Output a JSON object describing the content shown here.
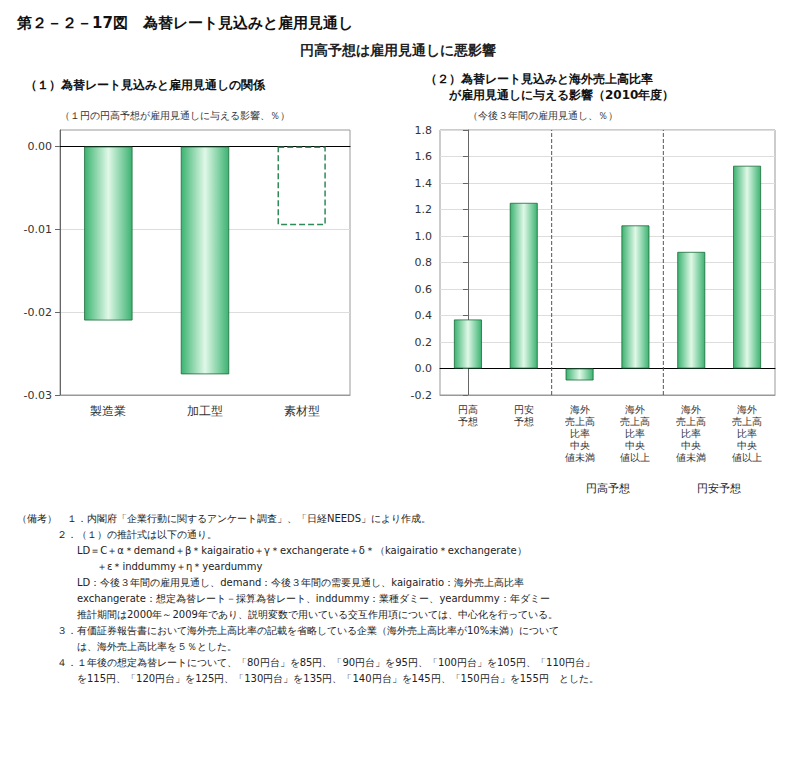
{
  "title": "第２－２－17図　為替レート見込みと雇用見通し",
  "subtitle": "円高予想は雇用見通しに悪影響",
  "notes": [
    "（備考）　１．内閣府「企業行動に関するアンケート調査」、「日経NEEDS」により作成。",
    "　　　　２．（１）の推計式は以下の通り。",
    "　　　　　　LD＝C＋α＊demand＋β＊kaigairatio＋γ＊exchangerate＋δ＊（kaigairatio＊exchangerate）",
    "　　　　　　　　＋ε＊inddummy＋η＊yeardummy",
    "　　　　　　LD：今後３年間の雇用見通し、demand：今後３年間の需要見通し、kaigairatio：海外売上高比率",
    "　　　　　　exchangerate：想定為替レート－採算為替レート、inddummy：業種ダミー、yeardummy：年ダミー",
    "　　　　　　推計期間は2000年～2009年であり、説明変数で用いている交互作用項については、中心化を行っている。",
    "　　　　３．有価証券報告書において海外売上高比率の記載を省略している企業（海外売上高比率が10%未満）について",
    "　　　　　　は、海外売上高比率を５％とした。",
    "　　　　４．１年後の想定為替レートについて、「80円台」を85円、「90円台」を95円、「100円台」を105円、「110円台」",
    "　　　　　　を115円、「120円台」を125円、「130円台」を135円、「140円台」を145円、「150円台」を155円　とした。"
  ],
  "chart_data": [
    {
      "type": "bar",
      "title": "（１）為替レート見込みと雇用見通しの関係",
      "y_label": "（１円の円高予想が雇用見通しに与える影響、％）",
      "categories": [
        "製造業",
        "加工型",
        "素材型"
      ],
      "series": [
        {
          "values": [
            -0.021,
            -0.0275,
            null
          ],
          "color": "#3cb371"
        },
        {
          "values": [
            null,
            null,
            -0.0095
          ],
          "color": "#2e8b57",
          "line_style": "dashed"
        }
      ],
      "ylim": [
        -0.03,
        0.002
      ],
      "yticks": [
        {
          "value": 0,
          "label": "0.00"
        },
        -0.01,
        -0.02,
        -0.03
      ],
      "grid": true
    },
    {
      "type": "bar",
      "title": "（２）為替レート見込みと海外売上高比率\n　　が雇用見通しに与える影響（2010年度）",
      "y_label": "（今後３年間の雇用見通し、％）",
      "categories": [
        "円高\n予想",
        "円安\n予想",
        "海外\n売上高\n比率\n中央\n値未満",
        "海外\n売上高\n比率\n中央\n値以上",
        "海外\n売上高\n比率\n中央\n値未満",
        "海外\n売上高\n比率\n中央\n値以上"
      ],
      "values": [
        0.37,
        1.25,
        -0.09,
        1.08,
        0.88,
        1.53
      ],
      "color": "#3cb371",
      "ylim": [
        -0.2,
        1.8
      ],
      "yticks": [
        -0.2,
        {
          "value": 0,
          "label": "0.0"
        },
        0.2,
        0.4,
        0.6,
        0.8,
        {
          "value": 1,
          "label": "1.0"
        },
        1.2,
        1.4,
        1.6,
        1.8
      ],
      "grid": true,
      "separators": [
        1.5,
        3.5
      ],
      "group_labels": [
        {
          "label": "円高予想",
          "x": 2.5
        },
        {
          "label": "円安予想",
          "x": 4.5
        }
      ]
    }
  ]
}
